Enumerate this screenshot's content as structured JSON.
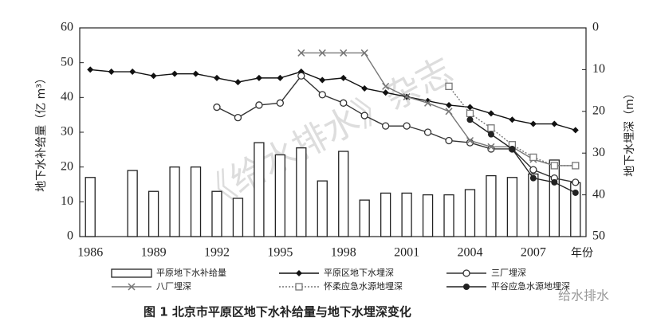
{
  "chart_data": {
    "type": "bar-line",
    "x": [
      1986,
      1987,
      1988,
      1989,
      1990,
      1991,
      1992,
      1993,
      1994,
      1995,
      1996,
      1997,
      1998,
      1999,
      2000,
      2001,
      2002,
      2003,
      2004,
      2005,
      2006,
      2007,
      2008,
      2009
    ],
    "xlim": [
      1985.5,
      2009.5
    ],
    "xticks": [
      1986,
      1989,
      1992,
      1995,
      1998,
      2001,
      2004,
      2007
    ],
    "x_label": "年份",
    "ylim": [
      0,
      60
    ],
    "yticks": [
      0,
      10,
      20,
      30,
      40,
      50,
      60
    ],
    "y_label": "地下水补给量（亿 m³）",
    "y2lim": [
      0,
      50
    ],
    "y2ticks": [
      0,
      10,
      20,
      30,
      40,
      50
    ],
    "y2_reversed": true,
    "y2_label": "地下水埋深（m）",
    "series": [
      {
        "name": "平原地下水补给量",
        "kind": "bar",
        "color": "#222",
        "values": [
          17,
          null,
          19,
          13,
          20,
          20,
          13,
          11,
          27,
          23.5,
          25.5,
          16,
          24.5,
          10.5,
          12.5,
          12.5,
          12,
          12,
          13.5,
          17.5,
          17,
          18,
          22,
          15.5
        ]
      },
      {
        "name": "平原区地下水埋深",
        "kind": "line",
        "marker": "diamond",
        "color": "#111",
        "axis": "y2",
        "values": [
          10,
          10.5,
          10.5,
          11.5,
          11,
          11,
          12,
          13,
          12,
          12,
          10.5,
          12.5,
          12,
          14.5,
          15.5,
          16.5,
          17.5,
          18.5,
          19,
          20.5,
          22,
          23,
          23,
          24.5
        ]
      },
      {
        "name": "三厂埋深",
        "kind": "line",
        "marker": "circle-open",
        "color": "#333",
        "axis": "y2",
        "values": [
          null,
          null,
          null,
          null,
          null,
          null,
          19,
          21.5,
          18.5,
          18,
          11.5,
          16,
          18,
          21,
          23.5,
          23.5,
          25,
          27,
          27.5,
          29,
          29,
          34,
          36,
          37
        ]
      },
      {
        "name": "八厂埋深",
        "kind": "line",
        "marker": "x",
        "color": "#777",
        "axis": "y2",
        "values": [
          null,
          null,
          null,
          null,
          null,
          null,
          null,
          null,
          null,
          null,
          6,
          6,
          6,
          6,
          14,
          16.5,
          18,
          20,
          27,
          28.5,
          28.5,
          31.5,
          33,
          33
        ]
      },
      {
        "name": "怀柔应急水源地埋深",
        "kind": "line",
        "marker": "square-open",
        "dashed": true,
        "color": "#777",
        "axis": "y2",
        "values": [
          null,
          null,
          null,
          null,
          null,
          null,
          null,
          null,
          null,
          null,
          null,
          null,
          null,
          null,
          null,
          null,
          null,
          14,
          20.5,
          24,
          28,
          31,
          33,
          33
        ]
      },
      {
        "name": "平谷应急水源地埋深",
        "kind": "line",
        "marker": "circle-filled",
        "color": "#222",
        "axis": "y2",
        "values": [
          null,
          null,
          null,
          null,
          null,
          null,
          null,
          null,
          null,
          null,
          null,
          null,
          null,
          null,
          null,
          null,
          null,
          null,
          22,
          25.5,
          29,
          36,
          37,
          39.5
        ]
      }
    ],
    "caption": "图 1  北京市平原区地下水补给量与地下水埋深变化",
    "watermark": "《给水排水》杂志",
    "logo": "给水排水"
  }
}
